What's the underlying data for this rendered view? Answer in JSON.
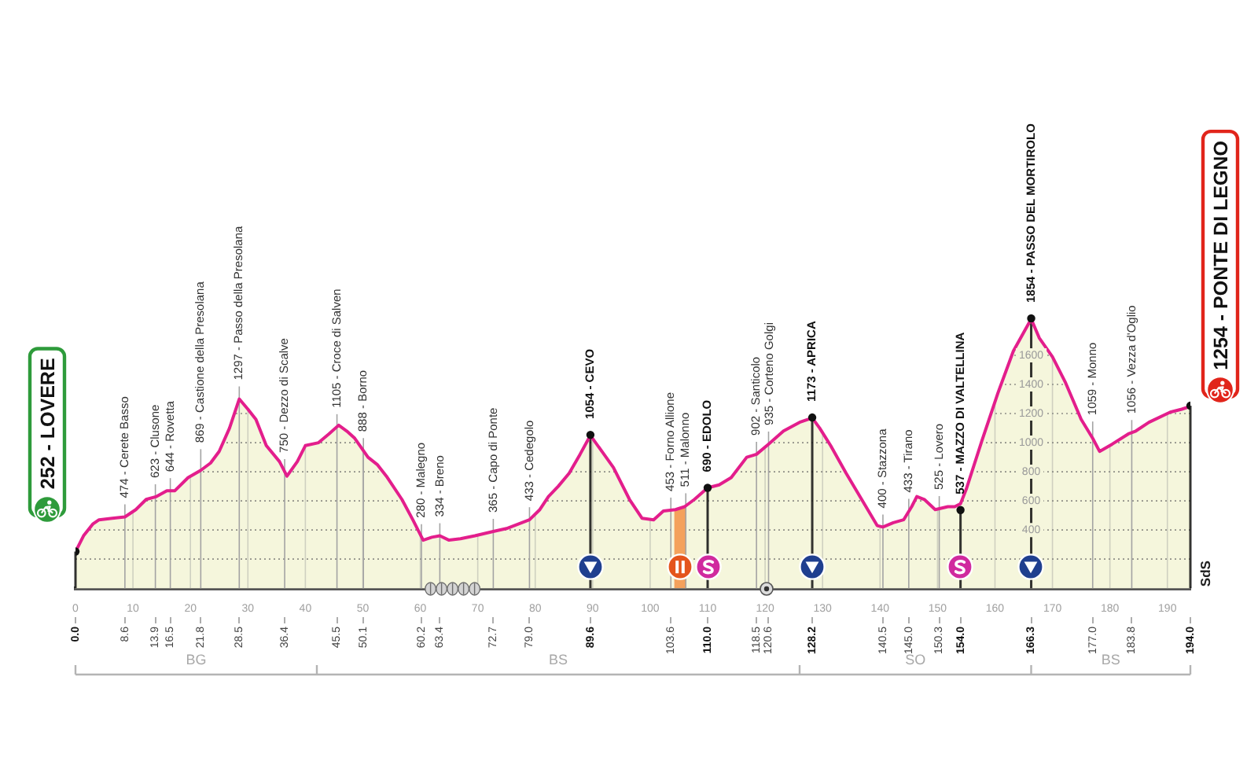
{
  "chart_data": {
    "type": "area",
    "xlim": [
      0,
      194
    ],
    "xticks": [
      0,
      10,
      20,
      30,
      40,
      50,
      60,
      70,
      80,
      90,
      100,
      110,
      120,
      130,
      140,
      150,
      160,
      170,
      180,
      190
    ],
    "x2lim": [
      0,
      194
    ],
    "x2ticks": [
      {
        "value": 0,
        "label": "0.0"
      },
      8.6,
      13.9,
      16.5,
      21.8,
      28.5,
      36.4,
      45.5,
      50.1,
      60.2,
      63.4,
      72.7,
      {
        "value": 79,
        "label": "79.0"
      },
      89.6,
      103.6,
      {
        "value": 110,
        "label": "110.0"
      },
      118.5,
      120.6,
      128.2,
      140.5,
      {
        "value": 145,
        "label": "145.0"
      },
      150.3,
      {
        "value": 154,
        "label": "154.0"
      },
      166.3,
      {
        "value": 177,
        "label": "177.0"
      },
      183.8,
      {
        "value": 194,
        "label": "194.0"
      }
    ],
    "ylim": [
      0,
      2000
    ],
    "yticks": [
      {
        "value": 200,
        "label": null
      },
      400,
      600,
      800,
      1000,
      1200,
      1400,
      1600
    ],
    "grid": true,
    "series": [
      {
        "color": "#e31e8c",
        "x": [
          0,
          1.4,
          3,
          4.1,
          6.4,
          8.6,
          10.5,
          12.3,
          14.1,
          15.9,
          17.3,
          19.6,
          21.8,
          23.5,
          25,
          26.8,
          28.5,
          30,
          31.4,
          33.2,
          35.5,
          36.8,
          38.6,
          40,
          42.3,
          44.1,
          45.8,
          47.2,
          48.6,
          50.9,
          52.5,
          54.1,
          56.8,
          58.7,
          60.5,
          62,
          63.4,
          65,
          67,
          69.5,
          72.7,
          75,
          79,
          80.8,
          82.3,
          84,
          85.9,
          87.8,
          89.6,
          91.6,
          93.6,
          96.4,
          98.6,
          100.6,
          102.3,
          104.4,
          106,
          107.7,
          110,
          112,
          114.1,
          116.8,
          118.5,
          120.6,
          123.2,
          126,
          128.2,
          129.5,
          131.4,
          134.1,
          136.8,
          139.5,
          140.5,
          142.3,
          144.1,
          145.5,
          146.4,
          147.7,
          149.6,
          151.8,
          153,
          154,
          155,
          157.7,
          160.5,
          163.2,
          166.3,
          167.7,
          170,
          172.3,
          175,
          177,
          178.2,
          180.4,
          183.2,
          184.5,
          186.8,
          190.5,
          192.5,
          194
        ],
        "values": [
          250,
          360,
          440,
          470,
          480,
          490,
          540,
          610,
          630,
          670,
          670,
          760,
          810,
          860,
          940,
          1100,
          1300,
          1230,
          1160,
          980,
          870,
          770,
          870,
          980,
          1000,
          1060,
          1120,
          1080,
          1030,
          900,
          850,
          770,
          610,
          470,
          330,
          350,
          360,
          330,
          340,
          360,
          390,
          410,
          470,
          540,
          630,
          700,
          790,
          920,
          1050,
          940,
          830,
          610,
          480,
          470,
          530,
          540,
          560,
          610,
          690,
          710,
          760,
          900,
          920,
          990,
          1080,
          1140,
          1170,
          1100,
          980,
          790,
          610,
          430,
          420,
          450,
          470,
          560,
          630,
          610,
          540,
          560,
          560,
          580,
          680,
          1010,
          1340,
          1630,
          1850,
          1720,
          1590,
          1410,
          1160,
          1030,
          940,
          990,
          1060,
          1080,
          1140,
          1210,
          1230,
          1250
        ]
      },
      {
        "type": "lollipop",
        "color": "#111111",
        "marker": "circle",
        "x": [
          0,
          89.6,
          110,
          128.2,
          154,
          166.3,
          194
        ],
        "values": [
          252,
          1054,
          690,
          1173,
          537,
          1854,
          1254
        ]
      }
    ],
    "bands": [
      {
        "axis": "x",
        "from": 104.2,
        "to": 106.2,
        "color": "#f4a15c"
      }
    ],
    "annotations": [
      "252 - LOVERE",
      "1254 - PONTE DI LEGNO",
      "SdS",
      "BG",
      "BS",
      "SO",
      "BS",
      {
        "text": "474 - Cerete Basso",
        "x": 8.6,
        "y": 474
      },
      {
        "text": "623 - Clusone",
        "x": 13.9,
        "y": 623
      },
      {
        "text": "644 - Rovetta",
        "x": 16.5,
        "y": 644
      },
      {
        "text": "869 - Castione della Presolana",
        "x": 21.8,
        "y": 869
      },
      {
        "text": "1297 - Passo della Presolana",
        "x": 28.5,
        "y": 1297
      },
      {
        "text": "750 - Dezzo di Scalve",
        "x": 36.4,
        "y": 750
      },
      {
        "text": "1105 - Croce di Salven",
        "x": 45.5,
        "y": 1105
      },
      {
        "text": "888 - Borno",
        "x": 50.1,
        "y": 888
      },
      {
        "text": "280 - Malegno",
        "x": 60.2,
        "y": 280
      },
      {
        "text": "334 - Breno",
        "x": 63.4,
        "y": 334
      },
      {
        "text": "365 - Capo di Ponte",
        "x": 72.7,
        "y": 365
      },
      {
        "text": "433 - Cedegolo",
        "x": 79,
        "y": 433
      },
      {
        "text": "1054 - CEVO",
        "x": 89.6,
        "y": 1054
      },
      {
        "text": "453 - Forno Allione",
        "x": 103.6,
        "y": 453
      },
      {
        "text": "511 - Malonno",
        "x": 106.2,
        "y": 511
      },
      {
        "text": "690 - EDOLO",
        "x": 110,
        "y": 690
      },
      {
        "text": "902 - Santicolo",
        "x": 118.5,
        "y": 902
      },
      {
        "text": "935 - Corteno Golgi",
        "x": 120.6,
        "y": 935
      },
      {
        "text": "1173 - APRICA",
        "x": 128.2,
        "y": 1173
      },
      {
        "text": "400 - Stazzona",
        "x": 140.5,
        "y": 400
      },
      {
        "text": "433 - Tirano",
        "x": 145,
        "y": 433
      },
      {
        "text": "525 - Lovero",
        "x": 150.3,
        "y": 525
      },
      {
        "text": "537 - MAZZO DI VALTELLINA",
        "x": 154,
        "y": 537
      },
      {
        "text": "1854 - PASSO DEL MORTIROLO",
        "x": 166.3,
        "y": 1854
      },
      {
        "text": "1059 - Monno",
        "x": 177,
        "y": 1059
      },
      {
        "text": "1056 - Vezza d'Oglio",
        "x": 183.8,
        "y": 1056
      }
    ]
  }
}
